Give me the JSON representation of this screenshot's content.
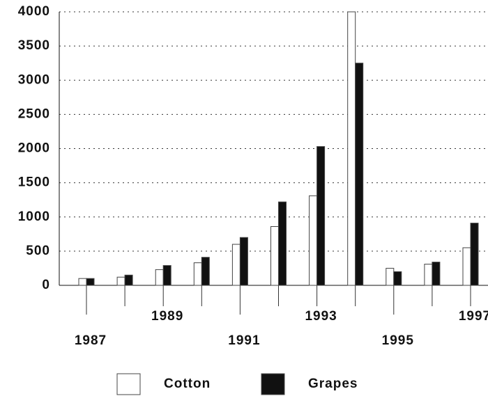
{
  "chart_data": {
    "type": "bar",
    "categories": [
      "1987",
      null,
      "1989",
      null,
      "1991",
      null,
      "1993",
      null,
      "1995",
      null,
      "1997"
    ],
    "series": [
      {
        "name": "Cotton",
        "color": "#ffffff",
        "values": [
          100,
          120,
          230,
          330,
          600,
          860,
          1310,
          4000,
          250,
          310,
          550
        ]
      },
      {
        "name": "Grapes",
        "color": "#111111",
        "values": [
          100,
          150,
          290,
          410,
          700,
          1220,
          2030,
          3250,
          200,
          340,
          910
        ]
      }
    ],
    "ylim": [
      0,
      4000
    ],
    "yticks": [
      0,
      500,
      1000,
      1500,
      2000,
      2500,
      3000,
      3500,
      4000
    ],
    "grid": true
  }
}
